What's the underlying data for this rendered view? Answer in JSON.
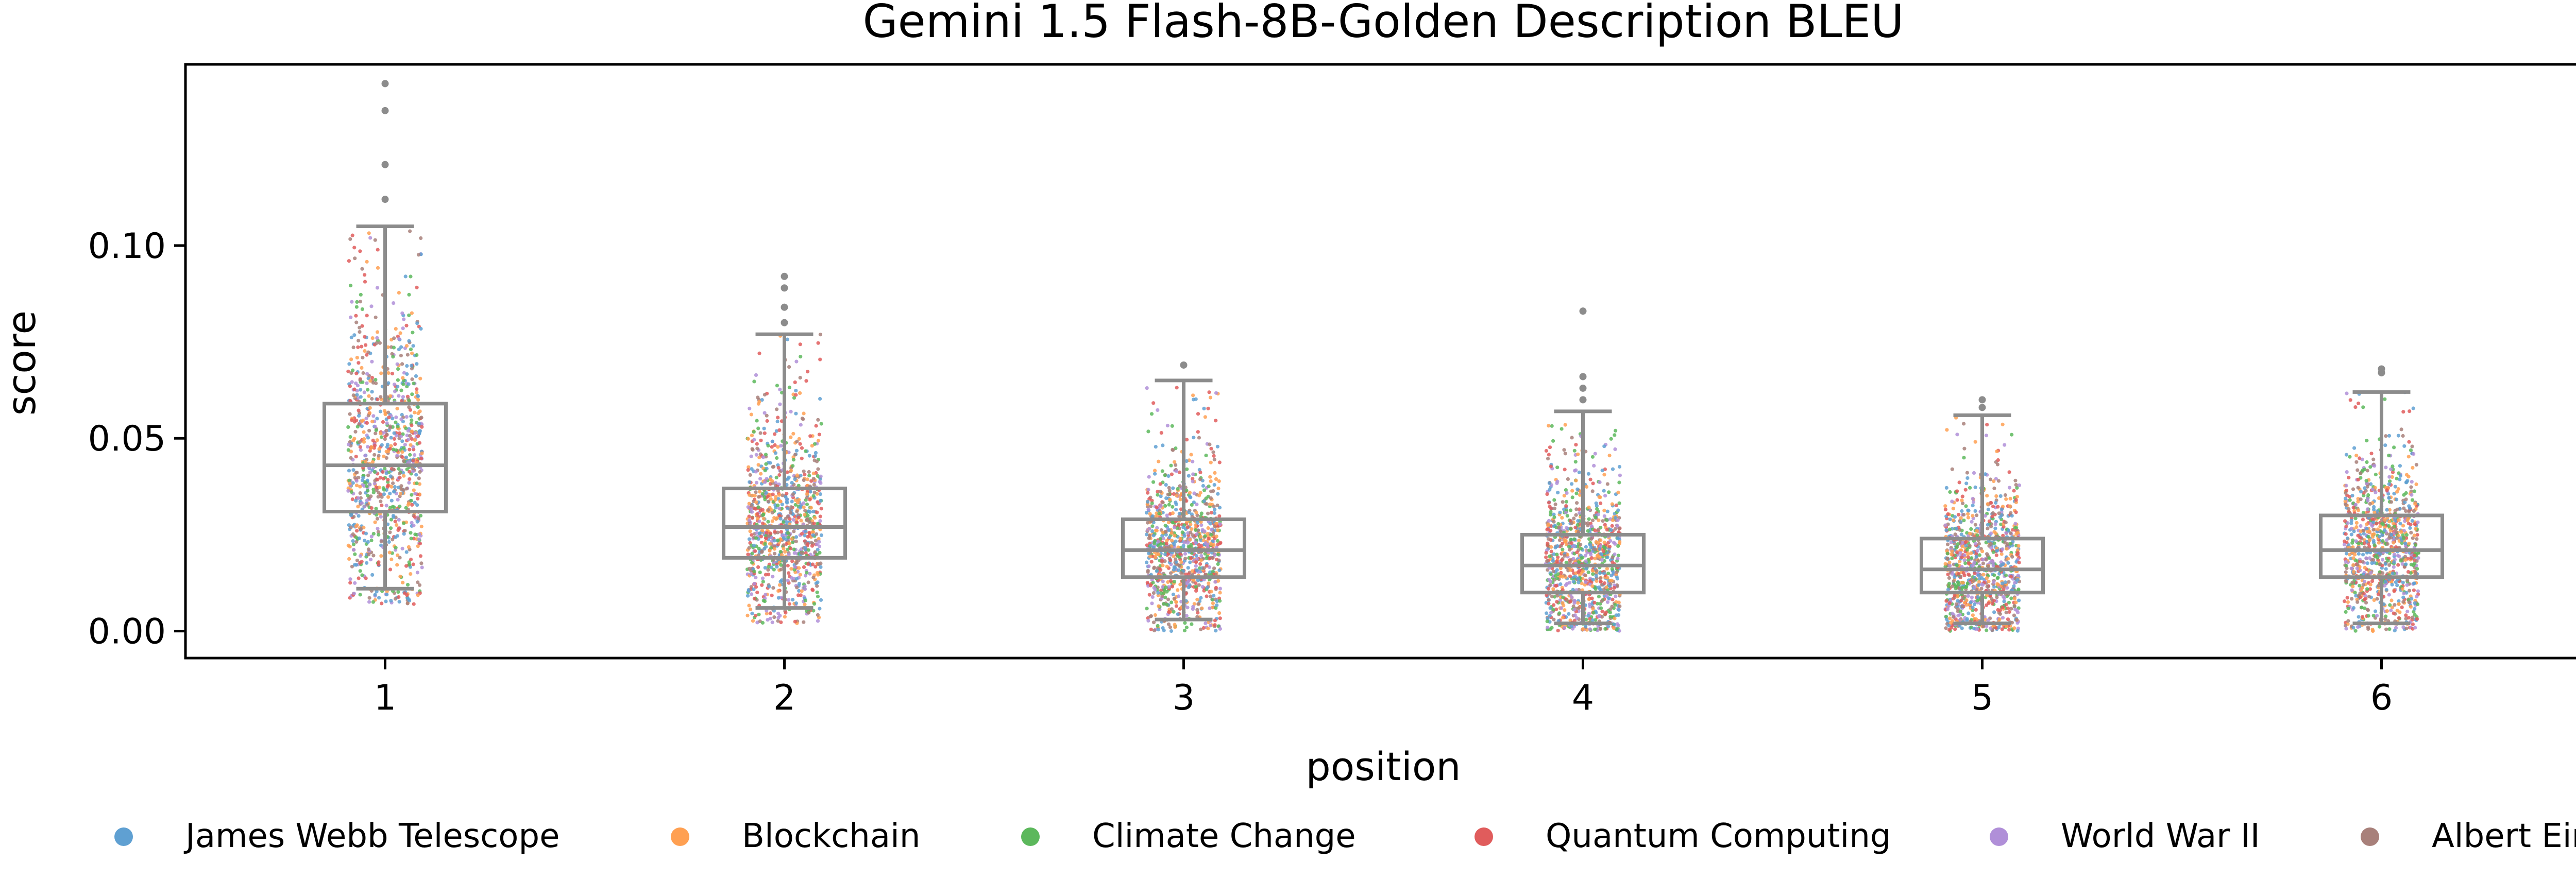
{
  "chart_data": {
    "type": "box-strip",
    "title": "Gemini 1.5 Flash-8B-Golden Description BLEU",
    "xlabel": "position",
    "ylabel": "score",
    "categories": [
      "1",
      "2",
      "3",
      "4",
      "5",
      "6"
    ],
    "ylim": [
      -0.007,
      0.147
    ],
    "yticks": [
      0.0,
      0.05,
      0.1
    ],
    "ytick_labels": [
      "0.00",
      "0.05",
      "0.10"
    ],
    "grid": false,
    "legend_position": "bottom",
    "boxes": [
      {
        "position": "1",
        "whisker_low": 0.011,
        "q1": 0.031,
        "median": 0.043,
        "q3": 0.059,
        "whisker_high": 0.105,
        "outliers": [
          0.112,
          0.121,
          0.135,
          0.142
        ]
      },
      {
        "position": "2",
        "whisker_low": 0.006,
        "q1": 0.019,
        "median": 0.027,
        "q3": 0.037,
        "whisker_high": 0.077,
        "outliers": [
          0.08,
          0.084,
          0.089,
          0.092
        ]
      },
      {
        "position": "3",
        "whisker_low": 0.003,
        "q1": 0.014,
        "median": 0.021,
        "q3": 0.029,
        "whisker_high": 0.065,
        "outliers": [
          0.069
        ]
      },
      {
        "position": "4",
        "whisker_low": 0.002,
        "q1": 0.01,
        "median": 0.017,
        "q3": 0.025,
        "whisker_high": 0.057,
        "outliers": [
          0.06,
          0.063,
          0.066,
          0.083
        ]
      },
      {
        "position": "5",
        "whisker_low": 0.002,
        "q1": 0.01,
        "median": 0.016,
        "q3": 0.024,
        "whisker_high": 0.056,
        "outliers": [
          0.058,
          0.06
        ]
      },
      {
        "position": "6",
        "whisker_low": 0.002,
        "q1": 0.014,
        "median": 0.021,
        "q3": 0.03,
        "whisker_high": 0.062,
        "outliers": [
          0.067,
          0.068
        ]
      }
    ],
    "series": [
      {
        "name": "James Webb Telescope",
        "color": "#5fa0d2"
      },
      {
        "name": "Blockchain",
        "color": "#ffa052"
      },
      {
        "name": "Climate Change",
        "color": "#5cb85c"
      },
      {
        "name": "Quantum Computing",
        "color": "#e05c5c"
      },
      {
        "name": "World War II",
        "color": "#b08fd8"
      },
      {
        "name": "Albert Einstein",
        "color": "#a8807a"
      }
    ],
    "box_color": "#8c8c8c"
  }
}
